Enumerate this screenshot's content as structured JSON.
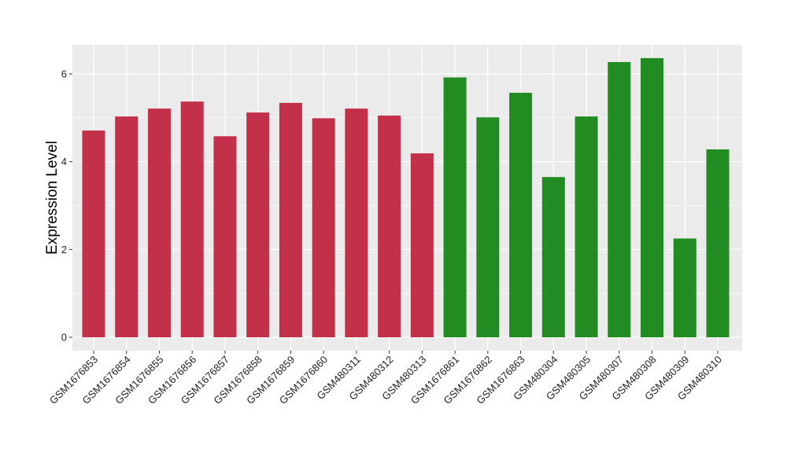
{
  "chart_data": {
    "type": "bar",
    "title": "",
    "xlabel": "",
    "ylabel": "Expression Level",
    "ylim": [
      0,
      6.65
    ],
    "yticks": [
      0,
      2,
      4,
      6
    ],
    "grid": true,
    "legend": "none",
    "panel_background": "#ebebeb",
    "grid_color": "#ffffff",
    "categories": [
      "GSM1676853",
      "GSM1676854",
      "GSM1676855",
      "GSM1676856",
      "GSM1676857",
      "GSM1676858",
      "GSM1676859",
      "GSM1676860",
      "GSM480311",
      "GSM480312",
      "GSM480313",
      "GSM1676861",
      "GSM1676862",
      "GSM1676863",
      "GSM480304",
      "GSM480305",
      "GSM480307",
      "GSM480308",
      "GSM480309",
      "GSM480310"
    ],
    "values": [
      4.71,
      5.03,
      5.21,
      5.37,
      4.58,
      5.12,
      5.34,
      4.99,
      5.21,
      5.05,
      4.19,
      5.92,
      5.01,
      5.57,
      3.65,
      5.03,
      6.27,
      6.36,
      2.25,
      4.28
    ],
    "groups": [
      "red",
      "red",
      "red",
      "red",
      "red",
      "red",
      "red",
      "red",
      "red",
      "red",
      "red",
      "green",
      "green",
      "green",
      "green",
      "green",
      "green",
      "green",
      "green",
      "green"
    ],
    "colors": {
      "red": "#c3304a",
      "green": "#228b22"
    }
  }
}
